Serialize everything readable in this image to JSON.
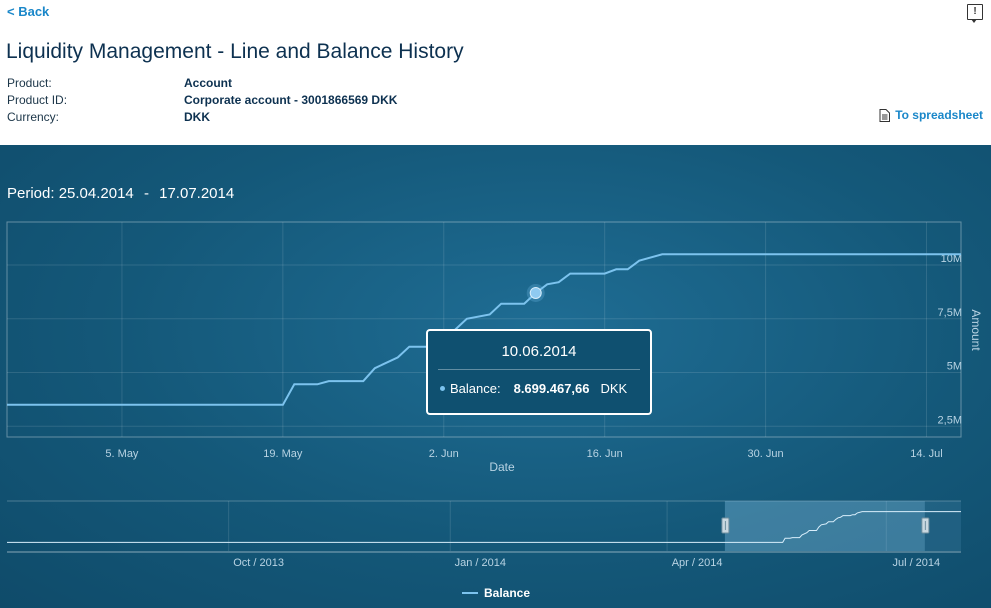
{
  "nav": {
    "back_label": "< Back",
    "help_icon": "feedback-icon"
  },
  "page": {
    "title": "Liquidity Management - Line and Balance History"
  },
  "info": [
    {
      "label": "Product:",
      "value": "Account"
    },
    {
      "label": "Product ID:",
      "value": "Corporate account - 3001866569 DKK"
    },
    {
      "label": "Currency:",
      "value": "DKK"
    }
  ],
  "actions": {
    "spreadsheet_label": "To spreadsheet",
    "spreadsheet_icon": "document-icon"
  },
  "period": {
    "label": "Period:",
    "start": "25.04.2014",
    "sep": "-",
    "end": "17.07.2014"
  },
  "tooltip": {
    "date": "10.06.2014",
    "series": "Balance:",
    "value": "8.699.467,66",
    "currency": "DKK"
  },
  "legend": {
    "label": "Balance"
  },
  "colors": {
    "line": "#7cc3ee",
    "background": "#145879",
    "link": "#1a87c9"
  },
  "chart_data": {
    "type": "line",
    "xlabel": "Date",
    "ylabel": "Amount",
    "x_ticks": [
      "5. May",
      "19. May",
      "2. Jun",
      "16. Jun",
      "30. Jun",
      "14. Jul"
    ],
    "y_ticks": [
      "2,5M",
      "5M",
      "7,5M",
      "10M"
    ],
    "ylim": [
      2000000,
      12000000
    ],
    "xlim": [
      "2014-04-25",
      "2014-07-17"
    ],
    "grid": true,
    "legend_position": "bottom",
    "series": [
      {
        "name": "Balance",
        "points": [
          [
            "2014-04-25",
            3500000
          ],
          [
            "2014-05-19",
            3500000
          ],
          [
            "2014-05-20",
            4450000
          ],
          [
            "2014-05-22",
            4450000
          ],
          [
            "2014-05-23",
            4600000
          ],
          [
            "2014-05-26",
            4600000
          ],
          [
            "2014-05-27",
            5200000
          ],
          [
            "2014-05-29",
            5700000
          ],
          [
            "2014-05-30",
            6200000
          ],
          [
            "2014-06-02",
            6200000
          ],
          [
            "2014-06-03",
            7000000
          ],
          [
            "2014-06-04",
            7500000
          ],
          [
            "2014-06-06",
            7700000
          ],
          [
            "2014-06-07",
            8200000
          ],
          [
            "2014-06-09",
            8200000
          ],
          [
            "2014-06-10",
            8699467.66
          ],
          [
            "2014-06-11",
            9100000
          ],
          [
            "2014-06-12",
            9200000
          ],
          [
            "2014-06-13",
            9600000
          ],
          [
            "2014-06-16",
            9600000
          ],
          [
            "2014-06-17",
            9800000
          ],
          [
            "2014-06-18",
            9800000
          ],
          [
            "2014-06-19",
            10200000
          ],
          [
            "2014-06-21",
            10500000
          ],
          [
            "2014-07-17",
            10500000
          ]
        ]
      }
    ],
    "highlight": {
      "x": "2014-06-10",
      "y": 8699467.66
    },
    "navigator": {
      "x_ticks": [
        "Oct / 2013",
        "Jan / 2014",
        "Apr / 2014",
        "Jul / 2014"
      ],
      "xlim": [
        "2013-07-01",
        "2014-08-01"
      ],
      "selection": [
        "2014-04-25",
        "2014-07-17"
      ]
    }
  }
}
